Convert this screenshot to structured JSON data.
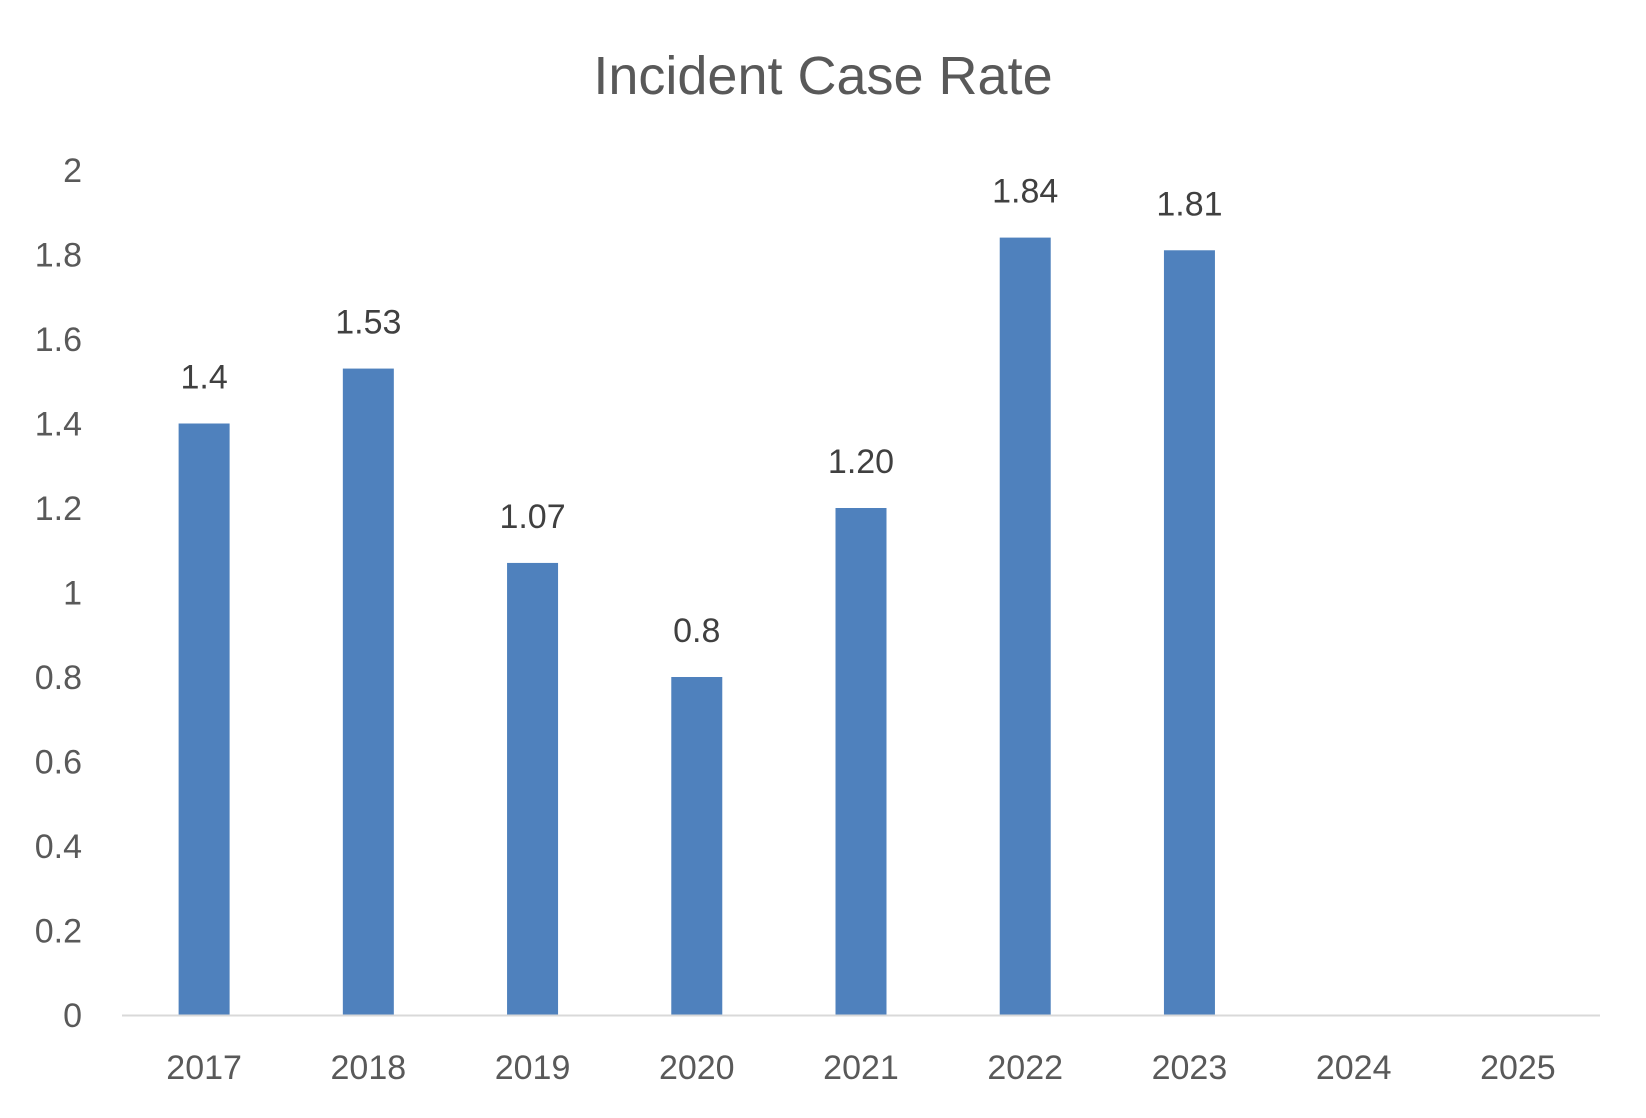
{
  "chart_data": {
    "type": "bar",
    "title": "Incident Case Rate",
    "categories": [
      "2017",
      "2018",
      "2019",
      "2020",
      "2021",
      "2022",
      "2023",
      "2024",
      "2025"
    ],
    "values": [
      1.4,
      1.53,
      1.07,
      0.8,
      1.2,
      1.84,
      1.81,
      null,
      null
    ],
    "data_labels": [
      "1.4",
      "1.53",
      "1.07",
      "0.8",
      "1.20",
      "1.84",
      "1.81",
      "",
      ""
    ],
    "y_ticks": [
      "0",
      "0.2",
      "0.4",
      "0.6",
      "0.8",
      "1",
      "1.2",
      "1.4",
      "1.6",
      "1.8",
      "2"
    ],
    "ylim": [
      0,
      2
    ],
    "xlabel": "",
    "ylabel": "",
    "grid": false,
    "legend": "none",
    "colors": {
      "bar": "#4f81bd",
      "axis": "#d9d9d9",
      "text": "#595959",
      "data_label": "#404040"
    }
  }
}
